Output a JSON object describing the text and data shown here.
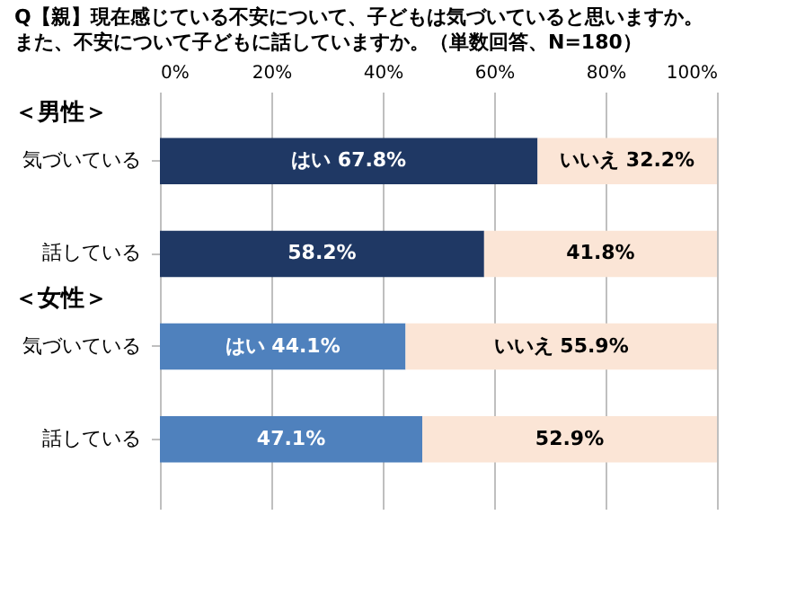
{
  "chart_data": {
    "type": "bar",
    "orientation": "horizontal",
    "stacked": true,
    "title": "Q【親】現在感じている不安について、子どもは気づいていると思いますか。",
    "subtitle": "また、不安について子どもに話していますか。（単数回答、N=180）",
    "categories": [
      "気づいている",
      "話している",
      "気づいている",
      "話している"
    ],
    "series": [
      {
        "colors": [
          "#1f3864",
          "#1f3864",
          "#4f81bd",
          "#4f81bd"
        ],
        "values": [
          67.8,
          58.2,
          44.1,
          47.1
        ],
        "value_labels": [
          "はい  67.8%",
          "58.2%",
          "はい 44.1%",
          "47.1%"
        ]
      },
      {
        "colors": [
          "#fbe5d6",
          "#fbe5d6",
          "#fbe5d6",
          "#fbe5d6"
        ],
        "values": [
          32.2,
          41.8,
          55.9,
          52.9
        ],
        "value_labels": [
          "いいえ 32.2%",
          "41.8%",
          "いいえ 55.9%",
          "52.9%"
        ]
      }
    ],
    "annotations": [
      "＜男性＞",
      "＜女性＞"
    ],
    "xlim": [
      0,
      100
    ],
    "xticks": [
      {
        "value": 0,
        "label": "0%"
      },
      {
        "value": 20,
        "label": "20%"
      },
      {
        "value": 40,
        "label": "40%"
      },
      {
        "value": 60,
        "label": "60%"
      },
      {
        "value": 80,
        "label": "80%"
      },
      {
        "value": 100,
        "label": "100%"
      }
    ],
    "grid": "x"
  }
}
